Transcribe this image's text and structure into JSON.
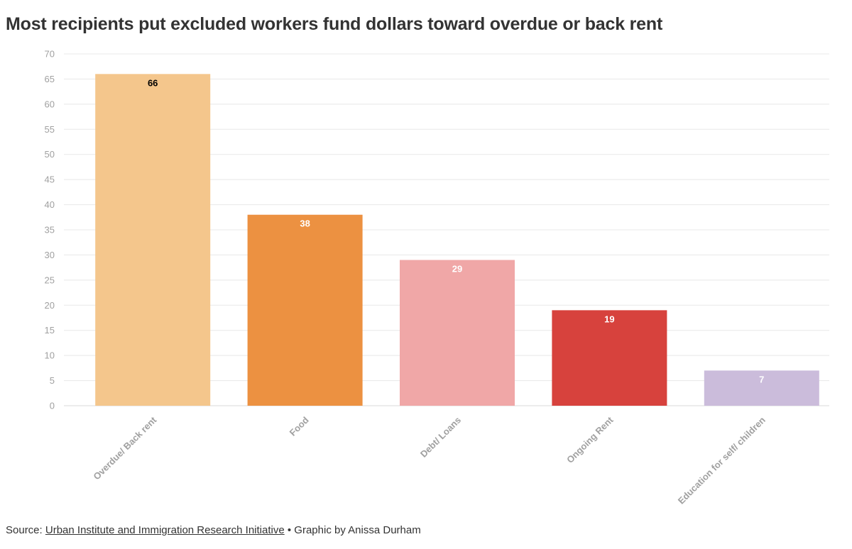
{
  "title": "Most recipients put excluded workers fund dollars toward overdue or back rent",
  "source": {
    "prefix": "Source: ",
    "link_text": "Urban Institute and Immigration Research Initiative",
    "separator": " • ",
    "credit": "Graphic by Anissa Durham"
  },
  "chart_data": {
    "type": "bar",
    "title": "Most recipients put excluded workers fund dollars toward overdue or back rent",
    "categories": [
      "Overdue/ Back rent",
      "Food",
      "Debt/ Loans",
      "Ongoing Rent",
      "Education for self/ children"
    ],
    "values": [
      66,
      38,
      29,
      19,
      7
    ],
    "colors": [
      "#f4c68c",
      "#ec9141",
      "#f0a7a7",
      "#d7423d",
      "#cbbcdb"
    ],
    "label_colors": [
      "#000000",
      "#ffffff",
      "#ffffff",
      "#ffffff",
      "#ffffff"
    ],
    "xlabel": "",
    "ylabel": "",
    "ylim": [
      0,
      70
    ],
    "yticks": [
      0,
      5,
      10,
      15,
      20,
      25,
      30,
      35,
      40,
      45,
      50,
      55,
      60,
      65,
      70
    ],
    "grid": true,
    "legend": "none"
  }
}
